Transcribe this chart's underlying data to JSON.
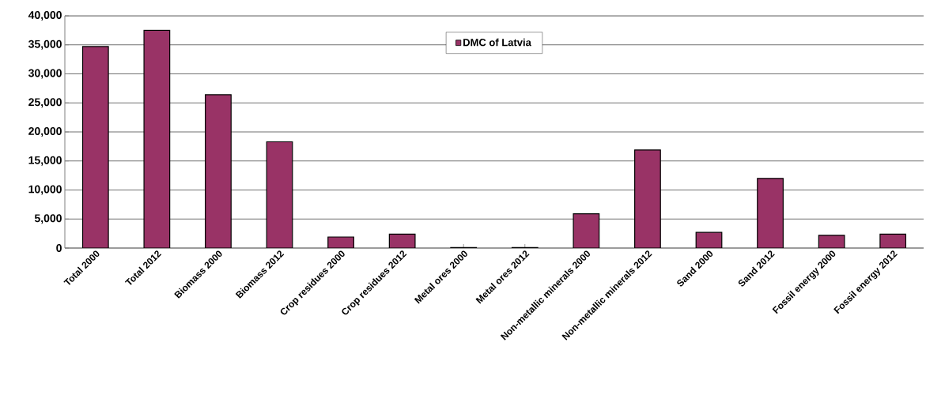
{
  "chart_data": {
    "type": "bar",
    "categories": [
      "Total 2000",
      "Total 2012",
      "Biomass 2000",
      "Biomass 2012",
      "Crop residues 2000",
      "Crop residues 2012",
      "Metal ores 2000",
      "Metal ores 2012",
      "Non-metallic minerals 2000",
      "Non-metallic minerals 2012",
      "Sand 2000",
      "Sand 2012",
      "Fossil energy 2000",
      "Fossil energy 2012"
    ],
    "series": [
      {
        "name": "DMC of Latvia",
        "color": "#993366",
        "values": [
          34700,
          37500,
          26400,
          18300,
          1900,
          2400,
          100,
          100,
          5900,
          16900,
          2700,
          12000,
          2200,
          2400
        ]
      }
    ],
    "ylim": [
      0,
      40000
    ],
    "yticks": [
      {
        "value": 0,
        "label": "0"
      },
      {
        "value": 5000,
        "label": "5,000"
      },
      {
        "value": 10000,
        "label": "10,000"
      },
      {
        "value": 15000,
        "label": "15,000"
      },
      {
        "value": 20000,
        "label": "20,000"
      },
      {
        "value": 25000,
        "label": "25,000"
      },
      {
        "value": 30000,
        "label": "30,000"
      },
      {
        "value": 35000,
        "label": "35,000"
      },
      {
        "value": 40000,
        "label": "40,000"
      }
    ],
    "grid": "y",
    "legend": "top"
  }
}
